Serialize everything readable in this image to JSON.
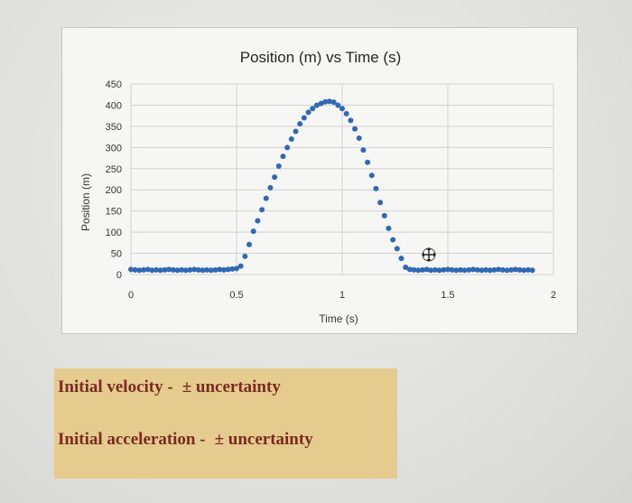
{
  "chart_data": {
    "type": "scatter",
    "title": "Position (m) vs Time (s)",
    "xlabel": "Time (s)",
    "ylabel": "Position (m)",
    "xlim": [
      0,
      2
    ],
    "ylim": [
      0,
      450
    ],
    "xticks": [
      "0",
      "0.5",
      "1",
      "1.5",
      "2"
    ],
    "yticks": [
      "0",
      "50",
      "100",
      "150",
      "200",
      "250",
      "300",
      "350",
      "400",
      "450"
    ],
    "grid": true,
    "marker_color": "#2f69b3",
    "series": [
      {
        "x": [
          0.0,
          0.02,
          0.04,
          0.06,
          0.08,
          0.1,
          0.12,
          0.14,
          0.16,
          0.18,
          0.2,
          0.22,
          0.24,
          0.26,
          0.28,
          0.3,
          0.32,
          0.34,
          0.36,
          0.38,
          0.4,
          0.42,
          0.44,
          0.46,
          0.48,
          0.5,
          0.52,
          0.54,
          0.56,
          0.58,
          0.6,
          0.62,
          0.64,
          0.66,
          0.68,
          0.7,
          0.72,
          0.74,
          0.76,
          0.78,
          0.8,
          0.82,
          0.84,
          0.86,
          0.88,
          0.9,
          0.92,
          0.94,
          0.96,
          0.98,
          1.0,
          1.02,
          1.04,
          1.06,
          1.08,
          1.1,
          1.12,
          1.14,
          1.16,
          1.18,
          1.2,
          1.22,
          1.24,
          1.26,
          1.28,
          1.3,
          1.32,
          1.34,
          1.36,
          1.38,
          1.4,
          1.42,
          1.44,
          1.46,
          1.48,
          1.5,
          1.52,
          1.54,
          1.56,
          1.58,
          1.6,
          1.62,
          1.64,
          1.66,
          1.68,
          1.7,
          1.72,
          1.74,
          1.76,
          1.78,
          1.8,
          1.82,
          1.84,
          1.86,
          1.88,
          1.9
        ],
        "y": [
          12,
          11,
          10,
          11,
          12,
          10,
          11,
          10,
          11,
          12,
          11,
          10,
          11,
          10,
          11,
          12,
          11,
          10,
          11,
          10,
          11,
          12,
          11,
          12,
          13,
          14,
          20,
          43,
          71,
          102,
          127,
          153,
          180,
          205,
          230,
          256,
          279,
          300,
          320,
          338,
          356,
          370,
          383,
          392,
          400,
          404,
          408,
          409,
          407,
          400,
          392,
          380,
          364,
          344,
          322,
          294,
          265,
          234,
          203,
          170,
          139,
          109,
          82,
          61,
          38,
          17,
          12,
          11,
          10,
          11,
          12,
          10,
          11,
          10,
          11,
          12,
          11,
          10,
          11,
          10,
          11,
          12,
          11,
          10,
          11,
          10,
          11,
          12,
          11,
          10,
          11,
          12,
          11,
          10,
          11,
          10
        ]
      }
    ]
  },
  "notes": {
    "velocity_label": "Initial velocity -",
    "acceleration_label": "Initial acceleration -",
    "uncertainty": "± uncertainty"
  }
}
